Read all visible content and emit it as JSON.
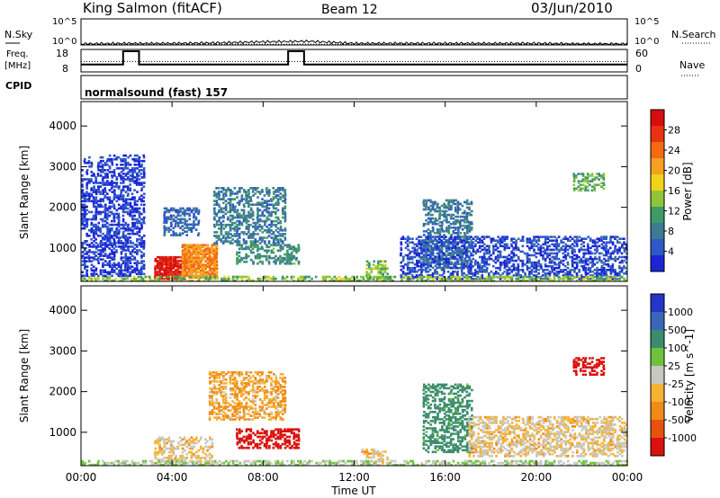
{
  "header": {
    "station": "King Salmon (fitACF)",
    "beam": "Beam 12",
    "date": "03/Jun/2010"
  },
  "left_labels": {
    "nsky": "N.Sky",
    "freq_line1": "Freq.",
    "freq_line2": "[MHz]",
    "cpid": "CPID"
  },
  "right_labels": {
    "nsearch": "N.Search",
    "nave": "Nave"
  },
  "cpid_text": "normalsound (fast) 157",
  "chart_data": [
    {
      "type": "line",
      "name": "noise",
      "ylabel_left": "N.Sky",
      "ylabel_right": "N.Search",
      "ticks_left": [
        "10^5",
        "10^0"
      ],
      "ticks_right": [
        "10^5",
        "10^0"
      ],
      "scale": "log",
      "ylim": [
        0,
        5
      ],
      "x_hours": [
        0,
        2,
        4,
        6,
        8,
        10,
        12,
        14,
        16,
        18,
        20,
        22,
        24
      ],
      "nsky_log10": [
        0.2,
        0.3,
        0.3,
        0.4,
        0.6,
        0.7,
        0.3,
        0.3,
        0.3,
        0.3,
        0.3,
        0.2,
        0.2
      ]
    },
    {
      "type": "line",
      "name": "frequency",
      "ylabel": "Freq. [MHz]",
      "ticks_left": [
        "18",
        "8"
      ],
      "ticks_right": [
        "60",
        "0"
      ],
      "freq_steps": [
        {
          "start": 0,
          "end": 1.85,
          "mhz": 11
        },
        {
          "start": 1.85,
          "end": 2.55,
          "mhz": 18
        },
        {
          "start": 2.55,
          "end": 9.1,
          "mhz": 11
        },
        {
          "start": 9.1,
          "end": 9.8,
          "mhz": 18
        },
        {
          "start": 9.8,
          "end": 24,
          "mhz": 11
        }
      ],
      "nave_level": 28
    },
    {
      "type": "heatmap",
      "name": "power",
      "xlabel": "Time UT",
      "ylabel": "Slant Range [km]",
      "x_ticks": [
        "00:00",
        "04:00",
        "08:00",
        "12:00",
        "16:00",
        "20:00",
        "00:00"
      ],
      "x_tick_hours": [
        0,
        4,
        8,
        12,
        16,
        20,
        24
      ],
      "ylim": [
        180,
        4600
      ],
      "y_ticks": [
        1000,
        2000,
        3000,
        4000
      ],
      "colorbar": {
        "label": "Power [dB]",
        "range": [
          0,
          32
        ],
        "ticks": [
          "4",
          "8",
          "12",
          "16",
          "20",
          "24",
          "28"
        ],
        "colors": [
          "#1b25d6",
          "#2f58c7",
          "#3d7a94",
          "#3e9a66",
          "#8fc53a",
          "#f2d31a",
          "#f6a020",
          "#f36a14",
          "#e83212",
          "#d80e0e"
        ]
      },
      "regions": [
        {
          "t0": 3.2,
          "t1": 4.6,
          "r0": 220,
          "r1": 800,
          "v": 30
        },
        {
          "t0": 4.4,
          "t1": 6.0,
          "r0": 260,
          "r1": 1100,
          "v": 22
        },
        {
          "t0": 5.8,
          "t1": 9.0,
          "r0": 1100,
          "r1": 2500,
          "v": 8
        },
        {
          "t0": 6.8,
          "t1": 9.6,
          "r0": 600,
          "r1": 1100,
          "v": 10
        },
        {
          "t0": 3.6,
          "t1": 5.2,
          "r0": 1300,
          "r1": 2000,
          "v": 6
        },
        {
          "t0": 12.5,
          "t1": 13.5,
          "r0": 220,
          "r1": 700,
          "v": 14
        },
        {
          "t0": 15.0,
          "t1": 17.2,
          "r0": 500,
          "r1": 2200,
          "v": 8
        },
        {
          "t0": 14.0,
          "t1": 24.0,
          "r0": 220,
          "r1": 1300,
          "v": 4
        },
        {
          "t0": 0.0,
          "t1": 24.0,
          "r0": 180,
          "r1": 320,
          "v": 14
        },
        {
          "t0": 21.6,
          "t1": 23.0,
          "r0": 2400,
          "r1": 2850,
          "v": 12
        },
        {
          "t0": 0.0,
          "t1": 2.8,
          "r0": 300,
          "r1": 3300,
          "v": 3
        }
      ]
    },
    {
      "type": "heatmap",
      "name": "velocity",
      "xlabel": "Time UT",
      "ylabel": "Slant Range [km]",
      "x_ticks": [
        "00:00",
        "04:00",
        "08:00",
        "12:00",
        "16:00",
        "20:00",
        "00:00"
      ],
      "x_tick_hours": [
        0,
        4,
        8,
        12,
        16,
        20,
        24
      ],
      "ylim": [
        180,
        4600
      ],
      "y_ticks": [
        1000,
        2000,
        3000,
        4000
      ],
      "colorbar": {
        "label": "Velocity [m s^-1]",
        "ticks": [
          "1000",
          "500",
          "100",
          "25",
          "-25",
          "-100",
          "-500",
          "-1000"
        ],
        "colors": [
          "#2535c8",
          "#3a66b8",
          "#3b8c6c",
          "#6fc23e",
          "#c8c8c0",
          "#f6b233",
          "#f08a18",
          "#e8520f",
          "#d9120e"
        ]
      },
      "regions": [
        {
          "t0": 3.2,
          "t1": 5.8,
          "r0": 220,
          "r1": 900,
          "v": 25
        },
        {
          "t0": 5.6,
          "t1": 9.0,
          "r0": 1300,
          "r1": 2500,
          "v": -25
        },
        {
          "t0": 6.8,
          "t1": 9.6,
          "r0": 600,
          "r1": 1100,
          "v": -400
        },
        {
          "t0": 12.3,
          "t1": 13.5,
          "r0": 220,
          "r1": 600,
          "v": 25
        },
        {
          "t0": 15.0,
          "t1": 17.2,
          "r0": 500,
          "r1": 2200,
          "v": 300
        },
        {
          "t0": 0.0,
          "t1": 24.0,
          "r0": 180,
          "r1": 320,
          "v": 100
        },
        {
          "t0": 17.0,
          "t1": 24.0,
          "r0": 400,
          "r1": 1400,
          "v": 25
        },
        {
          "t0": 21.6,
          "t1": 23.0,
          "r0": 2400,
          "r1": 2850,
          "v": -400
        }
      ]
    }
  ]
}
